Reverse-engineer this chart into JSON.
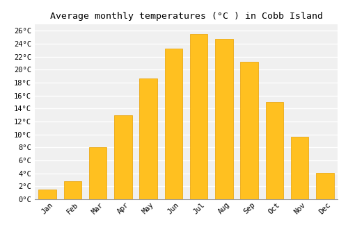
{
  "title": "Average monthly temperatures (°C ) in Cobb Island",
  "months": [
    "Jan",
    "Feb",
    "Mar",
    "Apr",
    "May",
    "Jun",
    "Jul",
    "Aug",
    "Sep",
    "Oct",
    "Nov",
    "Dec"
  ],
  "temperatures": [
    1.5,
    2.8,
    8.0,
    13.0,
    18.6,
    23.2,
    25.5,
    24.8,
    21.2,
    15.0,
    9.6,
    4.1
  ],
  "bar_color": "#FFC020",
  "bar_edge_color": "#E8A000",
  "plot_bg_color": "#F0F0F0",
  "fig_bg_color": "#FFFFFF",
  "grid_color": "#FFFFFF",
  "ylim": [
    0,
    27
  ],
  "ytick_step": 2,
  "title_fontsize": 9.5,
  "tick_fontsize": 7.5,
  "font_family": "monospace",
  "bar_width": 0.7
}
